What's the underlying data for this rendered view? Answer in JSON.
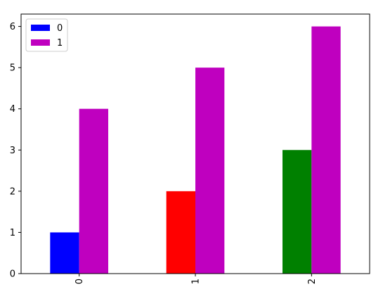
{
  "chart_data": {
    "type": "bar",
    "categories": [
      "0",
      "1",
      "2"
    ],
    "series": [
      {
        "name": "0",
        "values": [
          1,
          2,
          3
        ],
        "colors": [
          "#0000ff",
          "#ff0000",
          "#008000"
        ],
        "legend_color": "#0000ff"
      },
      {
        "name": "1",
        "values": [
          4,
          5,
          6
        ],
        "colors": [
          "#bf00bf",
          "#bf00bf",
          "#bf00bf"
        ],
        "legend_color": "#bf00bf"
      }
    ],
    "ylim": [
      0,
      6.3
    ],
    "yticks": [
      0,
      1,
      2,
      3,
      4,
      5,
      6
    ],
    "grid": false,
    "legend_position": "top-left",
    "xtick_rotation": "vertical"
  }
}
